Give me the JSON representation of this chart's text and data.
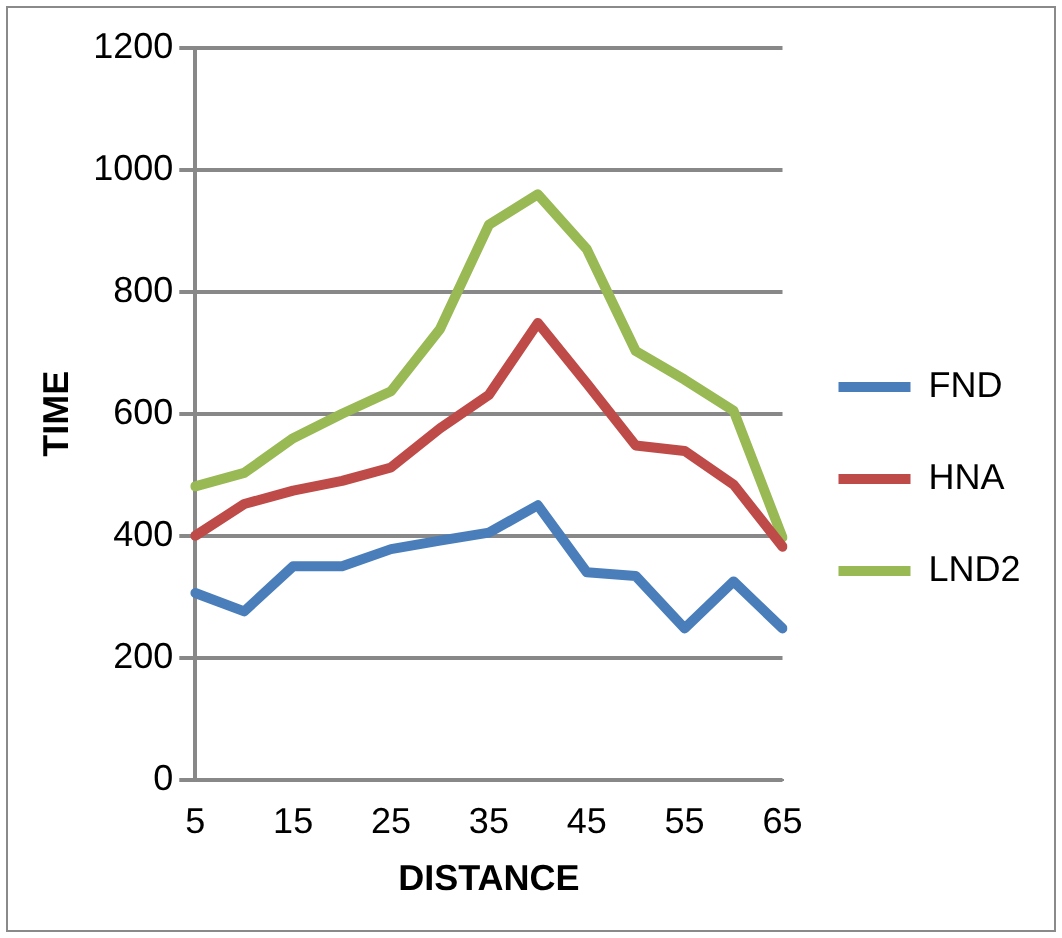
{
  "chart_data": {
    "type": "line",
    "xlabel": "DISTANCE",
    "ylabel": "TIME",
    "categories": [
      "5",
      null,
      "15",
      null,
      "25",
      null,
      "35",
      null,
      "45",
      null,
      "55",
      null,
      "65"
    ],
    "series": [
      {
        "name": "FND",
        "color": "#4a7ebb",
        "values": [
          306,
          276,
          350,
          350,
          378,
          392,
          405,
          450,
          340,
          334,
          248,
          325,
          248
        ]
      },
      {
        "name": "HNA",
        "color": "#be4b48",
        "values": [
          400,
          452,
          474,
          490,
          512,
          576,
          631,
          749,
          650,
          548,
          539,
          484,
          382
        ]
      },
      {
        "name": "LND2",
        "color": "#98b954",
        "values": [
          481,
          503,
          560,
          600,
          637,
          739,
          910,
          960,
          870,
          703,
          656,
          605,
          397
        ]
      }
    ],
    "ylim": [
      0,
      1200
    ],
    "yticks": [
      0,
      200,
      400,
      600,
      800,
      1000,
      1200
    ],
    "grid": "y",
    "legend": "right",
    "marker": "none"
  }
}
